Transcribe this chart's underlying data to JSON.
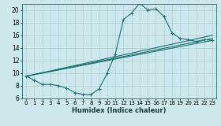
{
  "xlabel": "Humidex (Indice chaleur)",
  "bg_color": "#cce8ec",
  "grid_color": "#aacdd4",
  "line_color": "#1a7070",
  "xlim": [
    -0.5,
    23.5
  ],
  "ylim": [
    6,
    21
  ],
  "yticks": [
    6,
    8,
    10,
    12,
    14,
    16,
    18,
    20
  ],
  "xticks": [
    0,
    1,
    2,
    3,
    4,
    5,
    6,
    7,
    8,
    9,
    10,
    11,
    12,
    13,
    14,
    15,
    16,
    17,
    18,
    19,
    20,
    21,
    22,
    23
  ],
  "series1_x": [
    0,
    1,
    2,
    3,
    4,
    5,
    6,
    7,
    8,
    9,
    10,
    11,
    12,
    13,
    14,
    15,
    16,
    17,
    18,
    19,
    20,
    21,
    22,
    23
  ],
  "series1_y": [
    9.5,
    8.9,
    8.2,
    8.2,
    8.0,
    7.6,
    6.9,
    6.6,
    6.6,
    7.5,
    10.0,
    13.0,
    18.5,
    19.5,
    21.1,
    20.0,
    20.2,
    19.0,
    16.4,
    15.5,
    15.3,
    15.0,
    15.3,
    15.2
  ],
  "series2_x": [
    0,
    23
  ],
  "series2_y": [
    9.5,
    15.2
  ],
  "series3_x": [
    0,
    23
  ],
  "series3_y": [
    9.5,
    15.5
  ],
  "series4_x": [
    0,
    23
  ],
  "series4_y": [
    9.5,
    16.0
  ],
  "xlabel_fontsize": 6.0,
  "tick_fontsize": 5.0,
  "linewidth": 0.8,
  "marker_size": 2.5
}
